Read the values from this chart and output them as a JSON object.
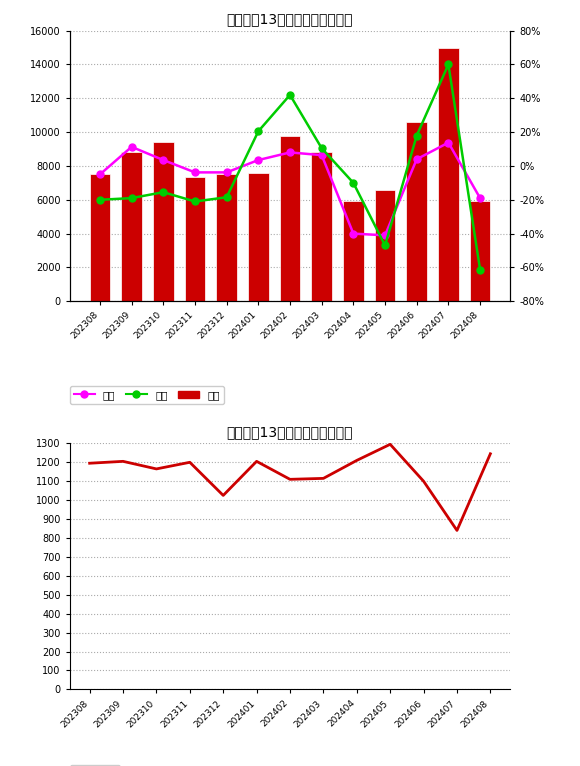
{
  "title1": "德国过去13个月碳化硅进口数量",
  "title2": "德国过去13个月碳化硅进口均价",
  "categories": [
    "202308",
    "202309",
    "202310",
    "202311",
    "202312",
    "202401",
    "202402",
    "202403",
    "202404",
    "202405",
    "202406",
    "202407",
    "202408"
  ],
  "bar_values": [
    7500,
    8800,
    9400,
    7350,
    7550,
    7600,
    9800,
    8800,
    5900,
    6550,
    10600,
    15000,
    5900
  ],
  "yibi_values": [
    -5.0,
    11.3,
    3.5,
    -3.8,
    -3.8,
    3.5,
    8.0,
    6.4,
    -40.0,
    -41.0,
    4.0,
    13.8,
    -19.0
  ],
  "huanbi_values": [
    -20.0,
    -19.0,
    -15.5,
    -21.0,
    -18.5,
    20.5,
    42.0,
    10.5,
    -10.0,
    -47.0,
    18.0,
    60.0,
    -61.26
  ],
  "price_values": [
    1195,
    1205,
    1165,
    1200,
    1025,
    1205,
    1110,
    1115,
    1210,
    1295,
    1100,
    840,
    1245
  ],
  "bar_color": "#cc0000",
  "yibi_color": "#ff00ff",
  "huanbi_color": "#00cc00",
  "price_line_color": "#cc0000",
  "background_color": "#ffffff",
  "grid_color": "#aaaaaa",
  "left_ylim": [
    0,
    16000
  ],
  "left_yticks": [
    0,
    2000,
    4000,
    6000,
    8000,
    10000,
    12000,
    14000,
    16000
  ],
  "right_ylim": [
    -0.8,
    0.8
  ],
  "right_yticks": [
    -0.8,
    -0.6,
    -0.4,
    -0.2,
    0.0,
    0.2,
    0.4,
    0.6,
    0.8
  ],
  "price_ylim": [
    0,
    1300
  ],
  "price_yticks": [
    0,
    100,
    200,
    300,
    400,
    500,
    600,
    700,
    800,
    900,
    1000,
    1100,
    1200,
    1300
  ],
  "legend_labels": [
    "同比",
    "环比",
    "总计"
  ],
  "legend_label_price": "总计"
}
